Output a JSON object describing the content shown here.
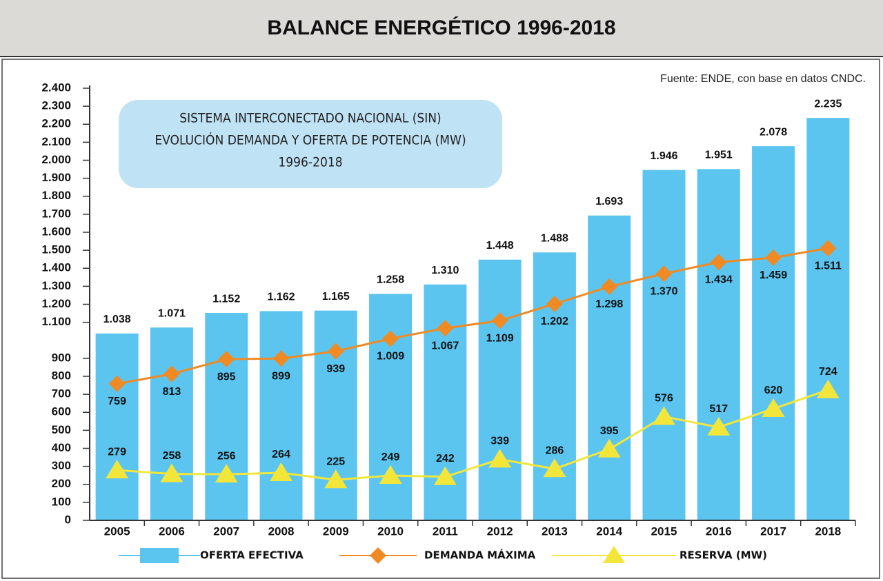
{
  "chart_data": {
    "type": "bar",
    "title": "BALANCE ENERGÉTICO 1996-2018",
    "source": "Fuente: ENDE, con base en datos CNDC.",
    "box_lines": [
      "SISTEMA INTERCONECTADO NACIONAL (SIN)",
      "EVOLUCIÓN DEMANDA Y OFERTA DE POTENCIA (MW)",
      "1996-2018"
    ],
    "categories": [
      "2005",
      "2006",
      "2007",
      "2008",
      "2009",
      "2010",
      "2011",
      "2012",
      "2013",
      "2014",
      "2015",
      "2016",
      "2017",
      "2018"
    ],
    "ylim": [
      0,
      2400
    ],
    "yticks": [
      0,
      100,
      200,
      300,
      400,
      500,
      600,
      700,
      800,
      900,
      {
        "value": 1100,
        "label": "1.100"
      },
      {
        "value": 1200,
        "label": "1.200"
      },
      {
        "value": 1300,
        "label": "1.300"
      },
      {
        "value": 1400,
        "label": "1.400"
      },
      {
        "value": 1500,
        "label": "1.500"
      },
      {
        "value": 1600,
        "label": "1.600"
      },
      {
        "value": 1700,
        "label": "1.700"
      },
      {
        "value": 1800,
        "label": "1.800"
      },
      {
        "value": 1900,
        "label": "1.900"
      },
      {
        "value": 2000,
        "label": "2.000"
      },
      {
        "value": 2100,
        "label": "2.100"
      },
      {
        "value": 2200,
        "label": "2.200"
      },
      {
        "value": 2300,
        "label": "2.300"
      },
      {
        "value": 2400,
        "label": "2.400"
      }
    ],
    "series": [
      {
        "name": "OFERTA EFECTIVA",
        "type": "bar",
        "color": "#5bc5f0",
        "values": [
          1038,
          1071,
          1152,
          1162,
          1165,
          1258,
          1310,
          1448,
          1488,
          1693,
          1946,
          1951,
          2078,
          2235
        ],
        "value_labels": [
          "1.038",
          "1.071",
          "1.152",
          "1.162",
          "1.165",
          "1.258",
          "1.310",
          "1.448",
          "1.488",
          "1.693",
          "1.946",
          "1.951",
          "2.078",
          "2.235"
        ]
      },
      {
        "name": "DEMANDA MÁXIMA",
        "type": "line",
        "marker": "diamond",
        "color": "#f08a24",
        "values": [
          759,
          813,
          895,
          899,
          939,
          1009,
          1067,
          1109,
          1202,
          1298,
          1370,
          1434,
          1459,
          1511
        ],
        "value_labels": [
          "759",
          "813",
          "895",
          "899",
          "939",
          "1.009",
          "1.067",
          "1.109",
          "1.202",
          "1.298",
          "1.370",
          "1.434",
          "1.459",
          "1.511"
        ]
      },
      {
        "name": "RESERVA (MW)",
        "type": "line",
        "marker": "triangle",
        "color": "#f3e63a",
        "values": [
          279,
          258,
          256,
          264,
          225,
          249,
          242,
          339,
          286,
          395,
          576,
          517,
          620,
          724
        ],
        "value_labels": [
          "279",
          "258",
          "256",
          "264",
          "225",
          "249",
          "242",
          "339",
          "286",
          "395",
          "576",
          "517",
          "620",
          "724"
        ]
      }
    ]
  }
}
